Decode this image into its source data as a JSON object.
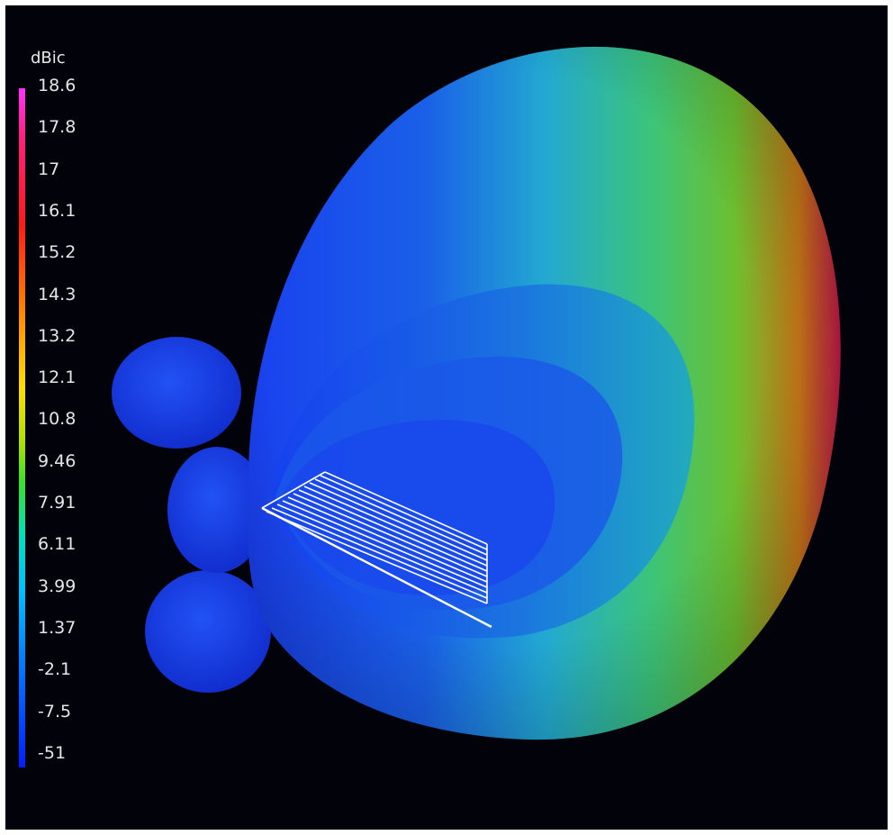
{
  "legend": {
    "unit": "dBic",
    "ticks": [
      "18.6",
      "17.8",
      "17",
      "16.1",
      "15.2",
      "14.3",
      "13.2",
      "12.1",
      "10.8",
      "9.46",
      "7.91",
      "6.11",
      "3.99",
      "1.37",
      "-2.1",
      "-7.5",
      "-51"
    ]
  },
  "colors": {
    "background": "#02020a",
    "lobe_low": "#1230e8",
    "lobe_mid": "#20b8c8",
    "lobe_green": "#5ac82a",
    "lobe_high": "#cc1a3a",
    "antenna": "#ffffff"
  }
}
